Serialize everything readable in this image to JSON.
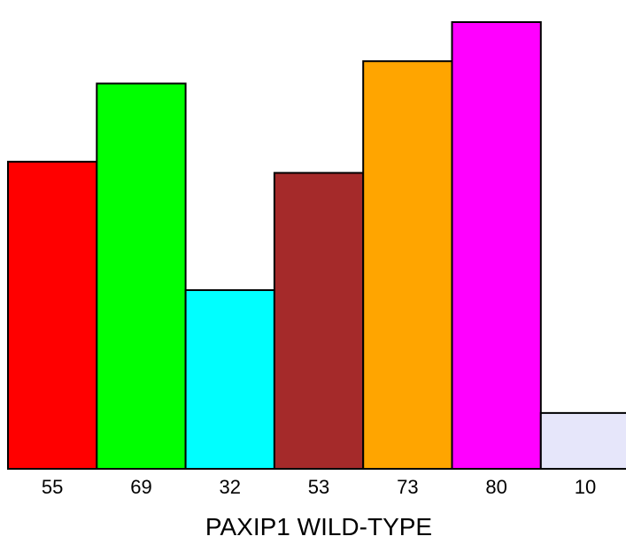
{
  "chart_data": {
    "type": "bar",
    "xlabel": "PAXIP1 WILD-TYPE",
    "ylabel": "",
    "categories": [
      "55",
      "69",
      "32",
      "53",
      "73",
      "80",
      "10"
    ],
    "values": [
      55,
      69,
      32,
      53,
      73,
      80,
      10
    ],
    "colors": [
      "#ff0000",
      "#00ff00",
      "#00ffff",
      "#a52a2a",
      "#ffa500",
      "#ff00ff",
      "#e6e6fa"
    ],
    "ylim": [
      0,
      80
    ],
    "grid": false,
    "legend": "none"
  }
}
